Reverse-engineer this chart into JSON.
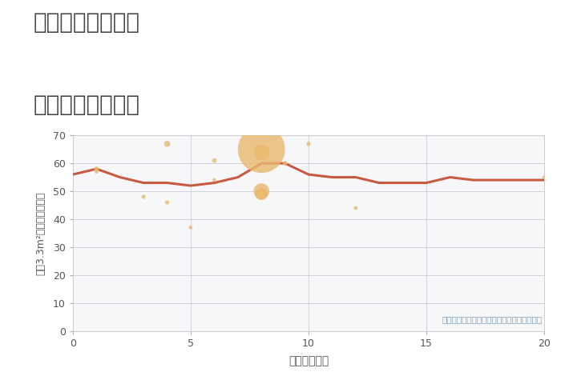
{
  "title_line1": "愛知県日進市栄の",
  "title_line2": "駅距離別土地価格",
  "xlabel": "駅距離（分）",
  "ylabel": "坪（3.3m²）単価（万円）",
  "annotation": "円の大きさは、取引のあった物件面積を示す",
  "xlim": [
    0,
    20
  ],
  "ylim": [
    0,
    70
  ],
  "yticks": [
    0,
    10,
    20,
    30,
    40,
    50,
    60,
    70
  ],
  "xticks": [
    0,
    5,
    10,
    15,
    20
  ],
  "fig_bg": "#ffffff",
  "plot_bg": "#f7f7fa",
  "bubble_color": "#e8b86d",
  "bubble_alpha": 0.8,
  "line_color": "#c85a42",
  "line_width": 2.2,
  "scatter_x": [
    1,
    1,
    3,
    4,
    4,
    5,
    6,
    6,
    8,
    8,
    8,
    8,
    9,
    10,
    12,
    20
  ],
  "scatter_y": [
    58,
    57,
    48,
    46,
    67,
    37,
    61,
    54,
    65,
    64,
    50,
    49,
    60,
    67,
    44,
    55
  ],
  "scatter_size": [
    18,
    12,
    14,
    14,
    30,
    12,
    18,
    12,
    1800,
    200,
    200,
    120,
    18,
    14,
    12,
    12
  ],
  "line_x": [
    0,
    1,
    2,
    3,
    4,
    5,
    6,
    7,
    8,
    9,
    10,
    11,
    12,
    13,
    14,
    15,
    16,
    17,
    18,
    19,
    20
  ],
  "line_y": [
    56,
    58,
    55,
    53,
    53,
    52,
    53,
    55,
    60,
    60,
    56,
    55,
    55,
    53,
    53,
    53,
    55,
    54,
    54,
    54,
    54
  ]
}
